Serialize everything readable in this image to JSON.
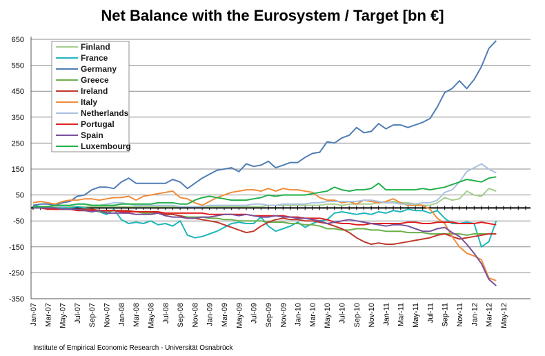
{
  "chart_data": {
    "type": "line",
    "title": "Net Balance with the Eurosystem / Target [bn €]",
    "xlabel": "",
    "ylabel": "",
    "ylim": [
      -350,
      650
    ],
    "yticks": [
      650,
      550,
      450,
      350,
      250,
      150,
      50,
      -50,
      -150,
      -250,
      -350
    ],
    "grid": "horizontal",
    "legend_position": "top-left",
    "x_tick_labels": [
      "Jan-07",
      "Mar-07",
      "May-07",
      "Jul-07",
      "Sep-07",
      "Nov-07",
      "Jan-08",
      "Mar-08",
      "May-08",
      "Jul-08",
      "Sep-08",
      "Nov-08",
      "Jan-09",
      "Mar-09",
      "May-09",
      "Jul-09",
      "Sep-09",
      "Nov-09",
      "Jan-10",
      "Mar-10",
      "May-10",
      "Jul-10",
      "Sep-10",
      "Nov-10",
      "Jan-11",
      "Mar-11",
      "May-11",
      "Jul-11",
      "Sep-11",
      "Nov-11",
      "Jan-12",
      "Mar-12",
      "May-12"
    ],
    "x": [
      "Jan-07",
      "Feb-07",
      "Mar-07",
      "Apr-07",
      "May-07",
      "Jun-07",
      "Jul-07",
      "Aug-07",
      "Sep-07",
      "Oct-07",
      "Nov-07",
      "Dec-07",
      "Jan-08",
      "Feb-08",
      "Mar-08",
      "Apr-08",
      "May-08",
      "Jun-08",
      "Jul-08",
      "Aug-08",
      "Sep-08",
      "Oct-08",
      "Nov-08",
      "Dec-08",
      "Jan-09",
      "Feb-09",
      "Mar-09",
      "Apr-09",
      "May-09",
      "Jun-09",
      "Jul-09",
      "Aug-09",
      "Sep-09",
      "Oct-09",
      "Nov-09",
      "Dec-09",
      "Jan-10",
      "Feb-10",
      "Mar-10",
      "Apr-10",
      "May-10",
      "Jun-10",
      "Jul-10",
      "Aug-10",
      "Sep-10",
      "Oct-10",
      "Nov-10",
      "Dec-10",
      "Jan-11",
      "Feb-11",
      "Mar-11",
      "Apr-11",
      "May-11",
      "Jun-11",
      "Jul-11",
      "Aug-11",
      "Sep-11",
      "Oct-11",
      "Nov-11",
      "Dec-11",
      "Jan-12",
      "Feb-12",
      "Mar-12",
      "Apr-12"
    ],
    "series": [
      {
        "name": "Finland",
        "color": "#a5cf8f",
        "values": [
          5,
          5,
          5,
          5,
          5,
          5,
          5,
          5,
          5,
          5,
          5,
          5,
          5,
          5,
          5,
          5,
          5,
          5,
          5,
          5,
          5,
          5,
          5,
          5,
          5,
          5,
          5,
          5,
          5,
          5,
          5,
          5,
          10,
          10,
          10,
          10,
          10,
          10,
          10,
          10,
          15,
          15,
          10,
          15,
          15,
          15,
          15,
          20,
          20,
          25,
          20,
          20,
          15,
          10,
          10,
          20,
          40,
          30,
          35,
          65,
          50,
          45,
          75,
          65
        ]
      },
      {
        "name": "France",
        "color": "#1fb6bc",
        "values": [
          10,
          5,
          5,
          0,
          0,
          0,
          5,
          0,
          -5,
          -15,
          -25,
          -5,
          -45,
          -60,
          -55,
          -60,
          -50,
          -65,
          -60,
          -70,
          -50,
          -105,
          -115,
          -110,
          -100,
          -90,
          -75,
          -60,
          -55,
          -60,
          -60,
          -35,
          -70,
          -90,
          -80,
          -70,
          -55,
          -75,
          -60,
          -50,
          -45,
          -20,
          -15,
          -20,
          -25,
          -20,
          -25,
          -15,
          -20,
          -10,
          -15,
          -5,
          -10,
          -10,
          -20,
          -10,
          -40,
          -60,
          -60,
          -55,
          -60,
          -150,
          -130,
          -50
        ]
      },
      {
        "name": "Germany",
        "color": "#4f7db4",
        "values": [
          10,
          15,
          15,
          10,
          20,
          25,
          45,
          50,
          70,
          80,
          80,
          75,
          100,
          115,
          95,
          95,
          95,
          95,
          95,
          110,
          100,
          75,
          95,
          115,
          130,
          145,
          150,
          155,
          140,
          170,
          160,
          165,
          180,
          155,
          165,
          175,
          175,
          195,
          210,
          215,
          255,
          250,
          270,
          280,
          310,
          290,
          295,
          325,
          305,
          320,
          320,
          310,
          320,
          330,
          345,
          390,
          445,
          460,
          490,
          460,
          495,
          545,
          615,
          645
        ]
      },
      {
        "name": "Greece",
        "color": "#6ab04c",
        "values": [
          0,
          0,
          0,
          0,
          -5,
          -5,
          -5,
          -10,
          -10,
          -15,
          -15,
          -10,
          -10,
          -15,
          -15,
          -20,
          -20,
          -20,
          -25,
          -25,
          -30,
          -35,
          -35,
          -35,
          -40,
          -40,
          -45,
          -45,
          -50,
          -50,
          -50,
          -50,
          -55,
          -55,
          -55,
          -60,
          -60,
          -65,
          -65,
          -70,
          -80,
          -80,
          -85,
          -85,
          -80,
          -80,
          -85,
          -85,
          -90,
          -90,
          -90,
          -95,
          -95,
          -95,
          -100,
          -100,
          -100,
          -100,
          -100,
          -105,
          -100,
          -100,
          -100,
          -100
        ]
      },
      {
        "name": "Ireland",
        "color": "#c0392b",
        "values": [
          0,
          0,
          0,
          -5,
          -5,
          -5,
          -5,
          -5,
          -5,
          -10,
          -10,
          -10,
          -10,
          -10,
          -15,
          -15,
          -15,
          -20,
          -25,
          -25,
          -30,
          -40,
          -40,
          -45,
          -50,
          -55,
          -65,
          -75,
          -85,
          -95,
          -90,
          -70,
          -55,
          -45,
          -40,
          -45,
          -45,
          -50,
          -50,
          -55,
          -60,
          -70,
          -80,
          -95,
          -115,
          -130,
          -140,
          -135,
          -140,
          -140,
          -135,
          -130,
          -125,
          -120,
          -115,
          -105,
          -100,
          -110,
          -120,
          -115,
          -110,
          -105,
          -100,
          -100
        ]
      },
      {
        "name": "Italy",
        "color": "#f08c3a",
        "values": [
          20,
          25,
          20,
          15,
          25,
          30,
          30,
          35,
          35,
          30,
          35,
          40,
          40,
          45,
          30,
          45,
          50,
          55,
          60,
          65,
          40,
          35,
          20,
          10,
          25,
          40,
          50,
          60,
          65,
          70,
          70,
          65,
          75,
          65,
          75,
          70,
          70,
          65,
          60,
          40,
          30,
          30,
          20,
          25,
          15,
          30,
          25,
          20,
          25,
          35,
          20,
          10,
          10,
          10,
          -5,
          -40,
          -60,
          -110,
          -150,
          -175,
          -185,
          -200,
          -270,
          -280
        ]
      },
      {
        "name": "Netherlands",
        "color": "#a9c2e0",
        "values": [
          5,
          5,
          5,
          10,
          5,
          10,
          15,
          15,
          10,
          10,
          15,
          20,
          20,
          15,
          10,
          10,
          10,
          10,
          10,
          10,
          5,
          5,
          5,
          5,
          10,
          10,
          10,
          10,
          10,
          10,
          15,
          15,
          10,
          10,
          15,
          15,
          15,
          15,
          20,
          20,
          25,
          25,
          25,
          25,
          25,
          30,
          30,
          25,
          20,
          20,
          15,
          15,
          15,
          20,
          20,
          30,
          60,
          70,
          100,
          140,
          155,
          170,
          150,
          135
        ]
      },
      {
        "name": "Portugal",
        "color": "#e02020",
        "values": [
          0,
          0,
          -5,
          -5,
          -5,
          -5,
          -10,
          -10,
          -10,
          -10,
          -10,
          -10,
          -15,
          -15,
          -15,
          -15,
          -15,
          -15,
          -20,
          -20,
          -20,
          -20,
          -20,
          -20,
          -25,
          -25,
          -25,
          -25,
          -25,
          -25,
          -30,
          -30,
          -30,
          -30,
          -30,
          -35,
          -35,
          -40,
          -40,
          -40,
          -45,
          -55,
          -60,
          -60,
          -65,
          -65,
          -60,
          -60,
          -60,
          -60,
          -60,
          -55,
          -55,
          -60,
          -60,
          -55,
          -55,
          -55,
          -60,
          -60,
          -60,
          -55,
          -60,
          -65
        ]
      },
      {
        "name": "Spain",
        "color": "#7a4f9c",
        "values": [
          0,
          0,
          0,
          0,
          -5,
          -5,
          -5,
          -10,
          -15,
          -10,
          -20,
          -20,
          -20,
          -20,
          -25,
          -25,
          -25,
          -20,
          -30,
          -35,
          -35,
          -40,
          -40,
          -35,
          -35,
          -30,
          -25,
          -25,
          -30,
          -25,
          -30,
          -35,
          -35,
          -30,
          -35,
          -35,
          -40,
          -40,
          -45,
          -50,
          -60,
          -55,
          -50,
          -45,
          -50,
          -55,
          -60,
          -65,
          -70,
          -65,
          -65,
          -70,
          -80,
          -90,
          -90,
          -80,
          -75,
          -95,
          -110,
          -140,
          -175,
          -215,
          -275,
          -300
        ]
      },
      {
        "name": "Luxembourg",
        "color": "#22b04b",
        "values": [
          5,
          5,
          5,
          10,
          10,
          10,
          15,
          15,
          10,
          10,
          10,
          10,
          15,
          15,
          15,
          15,
          15,
          20,
          20,
          20,
          15,
          15,
          30,
          40,
          45,
          40,
          35,
          30,
          30,
          30,
          35,
          40,
          50,
          45,
          50,
          50,
          50,
          50,
          55,
          60,
          65,
          80,
          70,
          65,
          70,
          70,
          75,
          95,
          70,
          70,
          70,
          70,
          70,
          75,
          70,
          75,
          80,
          90,
          100,
          110,
          105,
          100,
          115,
          120
        ]
      }
    ]
  },
  "footer": "Institute of Empirical Economic Research - Universität Osnabrück"
}
